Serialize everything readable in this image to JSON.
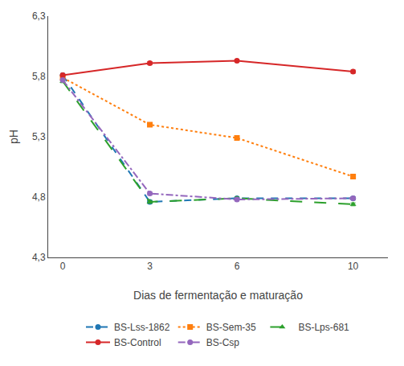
{
  "chart_data": {
    "type": "line",
    "x": [
      0,
      3,
      6,
      10
    ],
    "series": [
      {
        "name": "BS-Lss-1862",
        "values": [
          5.81,
          4.76,
          4.79,
          4.79
        ],
        "yerr": [
          0.013,
          0.012,
          0.012,
          0.012
        ],
        "marker": "circle",
        "line_style": "dashed"
      },
      {
        "name": "BS-Sem-35",
        "values": [
          5.79,
          5.4,
          5.29,
          4.97
        ],
        "yerr": [
          0.012,
          0.012,
          0.012,
          0.012
        ],
        "marker": "square",
        "line_style": "dotted"
      },
      {
        "name": "BS-Lps-681",
        "values": [
          5.76,
          4.76,
          4.79,
          4.74
        ],
        "yerr": [
          0.012,
          0.012,
          0.012,
          0.012
        ],
        "marker": "triangle-up",
        "line_style": "longdash"
      },
      {
        "name": "BS-Control",
        "values": [
          5.81,
          5.91,
          5.93,
          5.84
        ],
        "yerr": [
          0.015,
          0.013,
          0.013,
          0.013
        ],
        "marker": "circle",
        "line_style": "solid"
      },
      {
        "name": "BS-Csp",
        "values": [
          5.77,
          4.83,
          4.78,
          4.79
        ],
        "yerr": [
          0.012,
          0.012,
          0.012,
          0.012
        ],
        "marker": "circle",
        "line_style": "dashdot"
      }
    ],
    "xlabel": "Dias de fermentação e maturação",
    "ylabel": "pH",
    "xlim": [
      -0.5,
      11.2
    ],
    "xticks": [
      0,
      3,
      6,
      10
    ],
    "ylim": [
      4.3,
      6.3
    ],
    "yticks": [
      {
        "value": 4.3,
        "label": "4,3"
      },
      {
        "value": 4.8,
        "label": "4,8"
      },
      {
        "value": 5.3,
        "label": "5,3"
      },
      {
        "value": 5.8,
        "label": "5,8"
      },
      {
        "value": 6.3,
        "label": "6,3"
      }
    ],
    "grid": false,
    "legend": "bottom"
  }
}
